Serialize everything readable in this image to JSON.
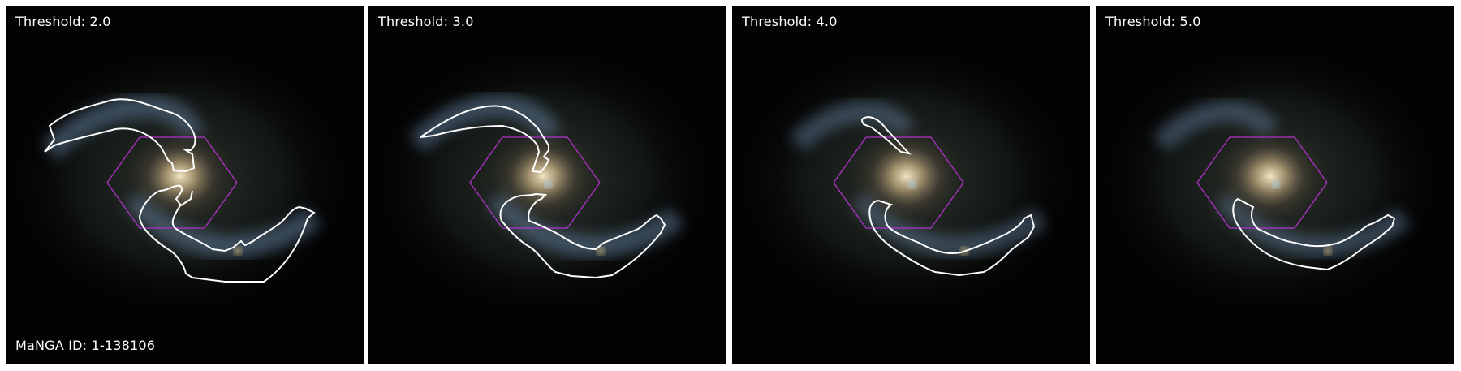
{
  "panels": [
    {
      "threshold_label": "Threshold: 2.0",
      "id_label": "MaNGA ID: 1-138106"
    },
    {
      "threshold_label": "Threshold: 3.0",
      "id_label": ""
    },
    {
      "threshold_label": "Threshold: 4.0",
      "id_label": ""
    },
    {
      "threshold_label": "Threshold: 5.0",
      "id_label": ""
    }
  ],
  "colors": {
    "contour": "#ffffff",
    "ifu_footprint": "#b033c8",
    "background": "#030303"
  }
}
